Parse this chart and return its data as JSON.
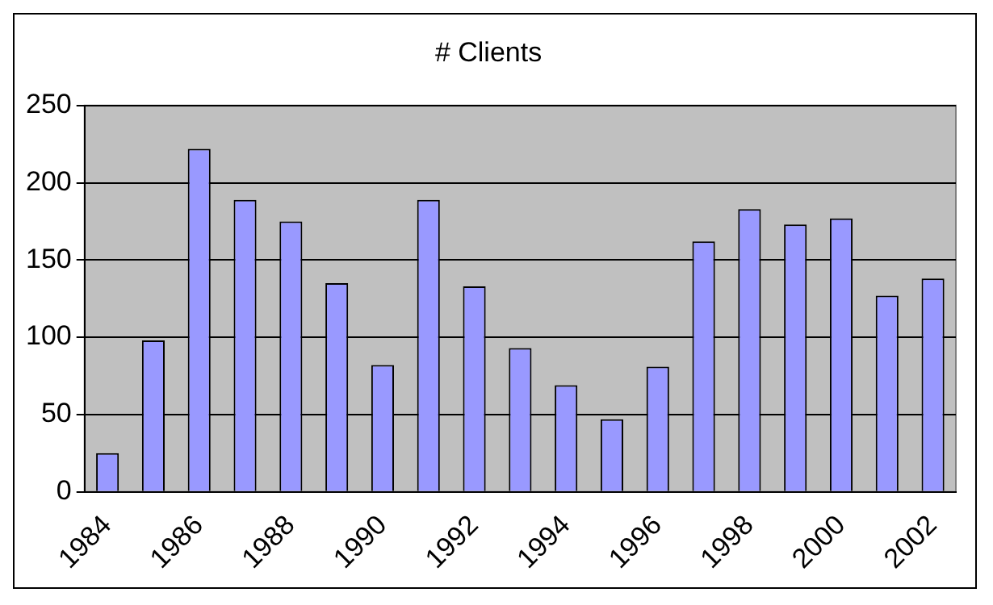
{
  "chart_data": {
    "type": "bar",
    "title": "# Clients",
    "categories": [
      "1984",
      null,
      "1986",
      null,
      "1988",
      null,
      "1990",
      null,
      "1992",
      null,
      "1994",
      null,
      "1996",
      null,
      "1998",
      null,
      "2000",
      null,
      "2002"
    ],
    "values": [
      25,
      98,
      222,
      189,
      175,
      135,
      82,
      189,
      133,
      93,
      69,
      47,
      81,
      162,
      183,
      173,
      177,
      127,
      138
    ],
    "color": "#9999ff",
    "ylim": [
      0,
      250
    ],
    "yticks": [
      0,
      50,
      100,
      150,
      200,
      250
    ],
    "grid": "y",
    "legend": false
  }
}
